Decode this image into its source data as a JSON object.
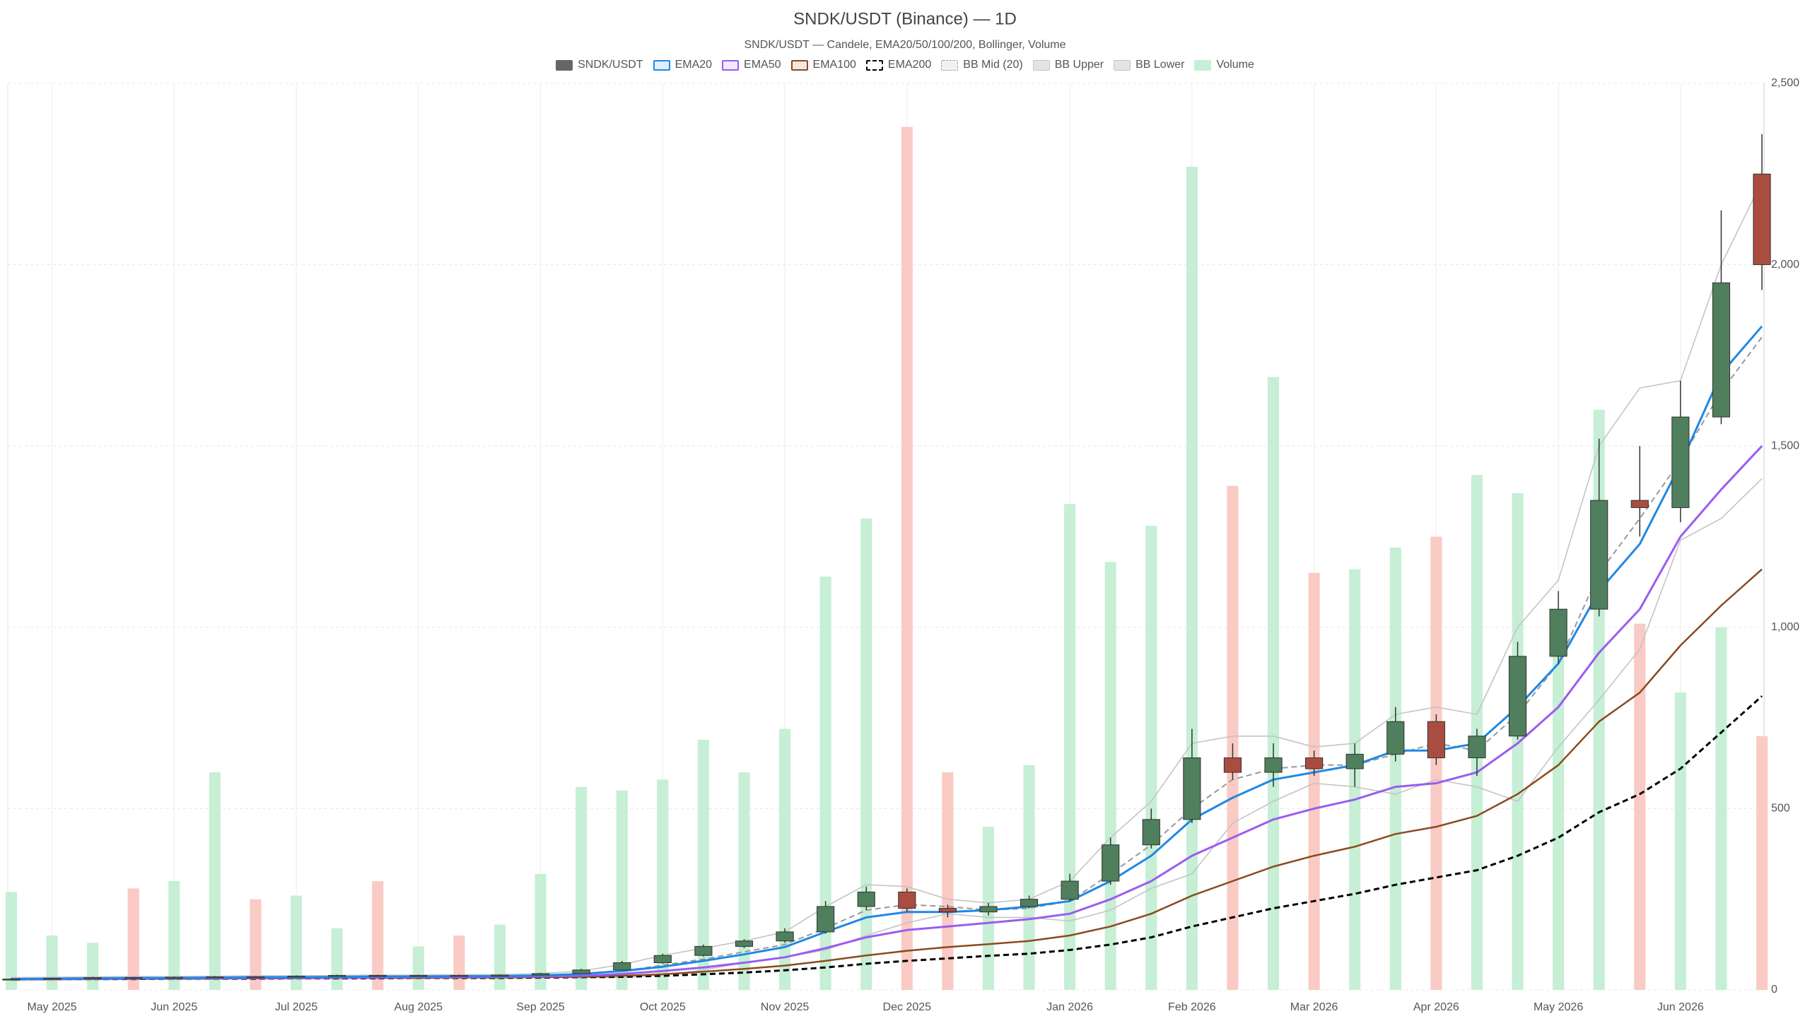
{
  "chart_data": {
    "type": "candlestick",
    "title": "SNDK/USDT (Binance) — 1D",
    "subtitle": "SNDK/USDT — Candele, EMA20/50/100/200, Bollinger, Volume",
    "categories": [
      null,
      "May 2025",
      null,
      null,
      "Jun 2025",
      null,
      null,
      "Jul 2025",
      null,
      null,
      "Aug 2025",
      null,
      null,
      "Sep 2025",
      null,
      null,
      "Oct 2025",
      null,
      null,
      "Nov 2025",
      null,
      null,
      "Dec 2025",
      null,
      null,
      null,
      "Jan 2026",
      null,
      null,
      "Feb 2026",
      null,
      null,
      "Mar 2026",
      null,
      null,
      "Apr 2026",
      null,
      null,
      "May 2026",
      null,
      null,
      "Jun 2026",
      null,
      null
    ],
    "ylim": [
      0,
      2500
    ],
    "yticks": [
      0,
      500,
      {
        "value": 1000,
        "label": "1,000"
      },
      {
        "value": 1500,
        "label": "1,500"
      },
      {
        "value": 2000,
        "label": "2,000"
      },
      {
        "value": 2500,
        "label": "2,500"
      }
    ],
    "grid": true,
    "ohlc": {
      "name": "SNDK/USDT",
      "color": "#666666",
      "up_color": "#4f7f5c",
      "down_color": "#a94d40",
      "open": [
        29,
        30,
        32,
        34,
        33,
        35,
        36,
        35,
        38,
        40,
        38,
        40,
        39,
        41,
        45,
        55,
        75,
        95,
        120,
        135,
        160,
        230,
        270,
        225,
        215,
        230,
        250,
        300,
        400,
        470,
        640,
        600,
        640,
        610,
        650,
        740,
        640,
        700,
        920,
        1050,
        1350,
        1330,
        1580,
        2250
      ],
      "high": [
        33,
        34,
        36,
        36,
        37,
        38,
        38,
        40,
        42,
        42,
        42,
        42,
        43,
        47,
        58,
        80,
        100,
        125,
        140,
        170,
        245,
        285,
        280,
        235,
        240,
        260,
        320,
        420,
        500,
        720,
        680,
        680,
        660,
        680,
        780,
        760,
        720,
        960,
        1100,
        1520,
        1500,
        1680,
        2150,
        2360
      ],
      "low": [
        27,
        29,
        31,
        31,
        32,
        33,
        33,
        34,
        36,
        36,
        36,
        37,
        38,
        40,
        44,
        54,
        72,
        92,
        115,
        130,
        155,
        220,
        215,
        200,
        205,
        225,
        245,
        290,
        390,
        460,
        580,
        560,
        590,
        560,
        630,
        620,
        590,
        690,
        900,
        1030,
        1250,
        1290,
        1560,
        1930
      ],
      "close": [
        30,
        32,
        34,
        33,
        35,
        36,
        35,
        38,
        40,
        38,
        40,
        39,
        41,
        45,
        55,
        75,
        95,
        120,
        135,
        160,
        230,
        270,
        225,
        215,
        230,
        250,
        300,
        400,
        470,
        640,
        600,
        640,
        610,
        650,
        740,
        640,
        700,
        920,
        1050,
        1350,
        1330,
        1580,
        1950,
        2000
      ]
    },
    "volume": {
      "name": "Volume",
      "up_color": "#c6efd5",
      "down_color": "#f9cbc4",
      "values": [
        270,
        150,
        130,
        280,
        300,
        600,
        250,
        260,
        170,
        300,
        120,
        150,
        180,
        320,
        560,
        550,
        580,
        690,
        600,
        720,
        1140,
        1300,
        2380,
        600,
        450,
        620,
        1340,
        1180,
        1280,
        2270,
        1390,
        1690,
        1150,
        1160,
        1220,
        1250,
        1420,
        1370,
        990,
        1600,
        1010,
        820,
        1000,
        700
      ]
    },
    "series": [
      {
        "name": "EMA20",
        "color": "#1e88e5",
        "dashed": false,
        "width": 3,
        "values": [
          30,
          31,
          32,
          33,
          33,
          34,
          35,
          35,
          36,
          37,
          37,
          38,
          38,
          40,
          44,
          52,
          64,
          80,
          98,
          118,
          160,
          200,
          215,
          215,
          220,
          230,
          245,
          300,
          370,
          470,
          530,
          580,
          600,
          620,
          660,
          660,
          680,
          780,
          900,
          1100,
          1230,
          1450,
          1700,
          1830
        ]
      },
      {
        "name": "EMA50",
        "color": "#9b5cf0",
        "dashed": false,
        "width": 3,
        "values": [
          30,
          30,
          31,
          31,
          32,
          32,
          33,
          33,
          34,
          34,
          35,
          35,
          36,
          37,
          39,
          44,
          52,
          62,
          75,
          90,
          115,
          145,
          165,
          175,
          185,
          195,
          210,
          250,
          300,
          370,
          420,
          470,
          500,
          525,
          560,
          570,
          600,
          680,
          780,
          930,
          1050,
          1250,
          1380,
          1500
        ]
      },
      {
        "name": "EMA100",
        "color": "#8b4a1e",
        "dashed": false,
        "width": 2.5,
        "values": [
          30,
          30,
          30,
          31,
          31,
          31,
          32,
          32,
          33,
          33,
          33,
          34,
          34,
          35,
          36,
          39,
          43,
          50,
          58,
          67,
          80,
          95,
          108,
          118,
          126,
          135,
          150,
          175,
          210,
          260,
          300,
          340,
          370,
          395,
          430,
          450,
          480,
          540,
          620,
          740,
          820,
          950,
          1060,
          1160
        ]
      },
      {
        "name": "EMA200",
        "color": "#000000",
        "dashed": true,
        "width": 3,
        "values": [
          30,
          30,
          30,
          30,
          31,
          31,
          31,
          32,
          32,
          32,
          33,
          33,
          33,
          34,
          35,
          36,
          39,
          43,
          48,
          54,
          62,
          72,
          80,
          87,
          94,
          100,
          110,
          125,
          145,
          175,
          200,
          225,
          245,
          265,
          290,
          310,
          330,
          370,
          420,
          490,
          540,
          610,
          710,
          810
        ]
      },
      {
        "name": "BB Mid (20)",
        "color": "#999999",
        "dashed": true,
        "width": 2,
        "values": [
          30,
          31,
          32,
          33,
          33,
          34,
          35,
          35,
          36,
          37,
          37,
          38,
          38,
          40,
          43,
          52,
          68,
          85,
          105,
          125,
          170,
          220,
          235,
          230,
          220,
          225,
          245,
          320,
          400,
          500,
          580,
          610,
          620,
          620,
          650,
          680,
          660,
          760,
          900,
          1150,
          1300,
          1460,
          1650,
          1800
        ]
      },
      {
        "name": "BB Upper",
        "color": "#c4c4c4",
        "dashed": false,
        "width": 1.6,
        "values": [
          34,
          35,
          36,
          37,
          37,
          38,
          39,
          39,
          40,
          41,
          41,
          42,
          42,
          45,
          52,
          70,
          95,
          115,
          135,
          160,
          230,
          290,
          285,
          250,
          240,
          250,
          300,
          420,
          520,
          680,
          700,
          700,
          670,
          680,
          760,
          780,
          760,
          1000,
          1130,
          1500,
          1660,
          1680,
          2000,
          2230
        ]
      },
      {
        "name": "BB Lower",
        "color": "#c4c4c4",
        "dashed": false,
        "width": 1.6,
        "values": [
          26,
          27,
          28,
          29,
          29,
          30,
          31,
          31,
          32,
          33,
          33,
          34,
          34,
          35,
          34,
          34,
          41,
          55,
          75,
          90,
          110,
          150,
          185,
          210,
          200,
          200,
          190,
          220,
          280,
          320,
          460,
          520,
          570,
          560,
          540,
          580,
          560,
          520,
          670,
          800,
          940,
          1240,
          1300,
          1410
        ]
      }
    ]
  }
}
